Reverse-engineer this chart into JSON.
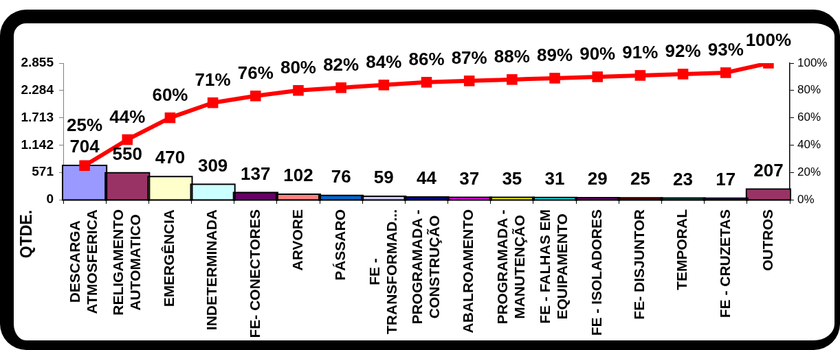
{
  "chart_data": {
    "type": "bar",
    "ylabel": "QTDE.",
    "categories": [
      "DESCARGA ATMOSFERICA",
      "RELIGAMENTO AUTOMATICO",
      "EMERGÊNCIA",
      "INDETERMINADA",
      "FE- CONECTORES",
      "ARVORE",
      "PÁSSARO",
      "FE - TRANSFORMAD...",
      "PROGRAMADA - CONSTRUÇÃO",
      "ABALROAMENTO",
      "PROGRAMADA - MANUTENÇÃO",
      "FE - FALHAS EM EQUIPAMENTO",
      "FE - ISOLADORES",
      "FE- DISJUNTOR",
      "TEMPORAL",
      "FE - CRUZETAS",
      "OUTROS"
    ],
    "series": [
      {
        "colors": [
          "#9999ff",
          "#993366",
          "#ffffcc",
          "#ccffff",
          "#660066",
          "#ff8080",
          "#0066cc",
          "#ccccff",
          "#000080",
          "#ff00ff",
          "#ffff00",
          "#00ffff",
          "#800080",
          "#800000",
          "#008080",
          "#0000ff",
          "#993366"
        ],
        "values": [
          704,
          550,
          470,
          309,
          137,
          102,
          76,
          59,
          44,
          37,
          35,
          31,
          29,
          25,
          23,
          17,
          207
        ],
        "value_labels": [
          "704",
          "550",
          "470",
          "309",
          "137",
          "102",
          "76",
          "59",
          "44",
          "37",
          "35",
          "31",
          "29",
          "25",
          "23",
          "17",
          "207"
        ]
      },
      {
        "type": "line",
        "axis": "y2",
        "color": "#ff0000",
        "marker": "square",
        "values": [
          25,
          44,
          60,
          71,
          76,
          80,
          82,
          84,
          86,
          87,
          88,
          89,
          90,
          91,
          92,
          93,
          100
        ],
        "value_labels": [
          "25%",
          "44%",
          "60%",
          "71%",
          "76%",
          "80%",
          "82%",
          "84%",
          "86%",
          "87%",
          "88%",
          "89%",
          "90%",
          "91%",
          "92%",
          "93%",
          "100%"
        ]
      }
    ],
    "ylim": [
      0,
      2855
    ],
    "yticks": [
      0,
      571,
      {
        "value": 1142,
        "label": "1.142"
      },
      {
        "value": 1713,
        "label": "1.713"
      },
      {
        "value": 2284,
        "label": "2.284"
      },
      {
        "value": 2855,
        "label": "2.855"
      }
    ],
    "y2lim": [
      0,
      100
    ],
    "y2ticks": [
      {
        "value": 0,
        "label": "0%"
      },
      {
        "value": 20,
        "label": "20%"
      },
      {
        "value": 40,
        "label": "40%"
      },
      {
        "value": 60,
        "label": "60%"
      },
      {
        "value": 80,
        "label": "80%"
      },
      {
        "value": 100,
        "label": "100%"
      }
    ]
  }
}
